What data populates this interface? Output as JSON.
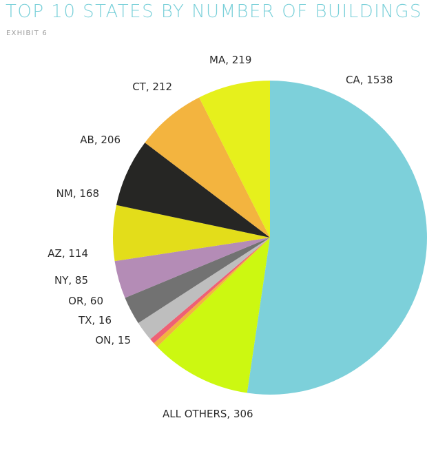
{
  "chart_title": "TOP 10 STATES BY NUMBER OF BUILDINGS",
  "exhibit_label": "EXHIBIT 6",
  "colors": {
    "title": "#7ad0d9",
    "CA": "#7dd0da",
    "ALL OTHERS": "#ccf811",
    "ON": "#f3b43f",
    "TX": "#ee6175",
    "OR": "#bebebe",
    "NY": "#727272",
    "AZ": "#b48cb6",
    "NM": "#e3dd1a",
    "AB": "#262624",
    "CT": "#f3b43f",
    "MA": "#e6f01c"
  },
  "chart_data": {
    "type": "pie",
    "title": "TOP 10 STATES BY NUMBER OF BUILDINGS",
    "subtitle": "EXHIBIT 6",
    "slices": [
      {
        "label": "CA",
        "value": 1538,
        "text": "CA, 1538"
      },
      {
        "label": "ALL OTHERS",
        "value": 306,
        "text": "ALL OTHERS, 306"
      },
      {
        "label": "ON",
        "value": 15,
        "text": "ON, 15"
      },
      {
        "label": "TX",
        "value": 16,
        "text": "TX, 16"
      },
      {
        "label": "OR",
        "value": 60,
        "text": "OR, 60"
      },
      {
        "label": "NY",
        "value": 85,
        "text": "NY, 85"
      },
      {
        "label": "AZ",
        "value": 114,
        "text": "AZ, 114"
      },
      {
        "label": "NM",
        "value": 168,
        "text": "NM, 168"
      },
      {
        "label": "AB",
        "value": 206,
        "text": "AB, 206"
      },
      {
        "label": "CT",
        "value": 212,
        "text": "CT, 212"
      },
      {
        "label": "MA",
        "value": 219,
        "text": "MA, 219"
      }
    ],
    "start": "top",
    "direction": "clockwise",
    "legend": "none"
  }
}
